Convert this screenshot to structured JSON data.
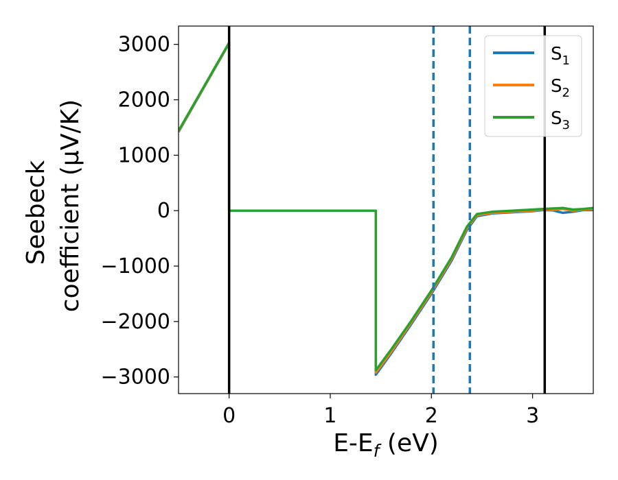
{
  "chart_data": {
    "type": "line",
    "xlabel_main": "E-E",
    "xlabel_sub": "f",
    "xlabel_unit": " (eV)",
    "ylabel_line1": "Seebeck",
    "ylabel_line2": "coefficient  (μV/K)",
    "xlim": [
      -0.5,
      3.6
    ],
    "ylim": [
      -3300,
      3330
    ],
    "xticks": [
      0,
      1,
      2,
      3
    ],
    "xtick_labels": [
      "0",
      "1",
      "2",
      "3"
    ],
    "yticks": [
      3000,
      2000,
      1000,
      0,
      -1000,
      -2000,
      -3000
    ],
    "ytick_labels": [
      "3000",
      "2000",
      "1000",
      "0",
      "−1000",
      "−2000",
      "−3000"
    ],
    "grid": false,
    "legend_position": "top-right",
    "vlines_solid": [
      0.0,
      3.12
    ],
    "vlines_dashed": [
      2.02,
      2.38
    ],
    "series": [
      {
        "name_main": "S",
        "name_sub": "1",
        "color": "#1f77b4",
        "x": [
          -0.5,
          0.0,
          0.0,
          1.45,
          1.45,
          1.6,
          1.8,
          2.0,
          2.2,
          2.35,
          2.45,
          2.6,
          2.8,
          3.0,
          3.1,
          3.2,
          3.3,
          3.4,
          3.5,
          3.6
        ],
        "y": [
          1420,
          3020,
          0,
          0,
          -2960,
          -2580,
          -2050,
          -1500,
          -900,
          -350,
          -100,
          -50,
          -30,
          -10,
          10,
          5,
          -40,
          -20,
          10,
          10
        ]
      },
      {
        "name_main": "S",
        "name_sub": "2",
        "color": "#ff7f0e",
        "x": [
          -0.5,
          0.0,
          0.0,
          1.45,
          1.45,
          1.6,
          1.8,
          2.0,
          2.2,
          2.35,
          2.45,
          2.6,
          2.8,
          3.0,
          3.1,
          3.2,
          3.3,
          3.4,
          3.5,
          3.6
        ],
        "y": [
          1430,
          3025,
          0,
          0,
          -2920,
          -2550,
          -2020,
          -1470,
          -870,
          -320,
          -80,
          -40,
          -20,
          0,
          20,
          15,
          30,
          0,
          20,
          30
        ]
      },
      {
        "name_main": "S",
        "name_sub": "3",
        "color": "#2ca02c",
        "x": [
          -0.5,
          0.0,
          0.0,
          1.45,
          1.45,
          1.6,
          1.8,
          2.0,
          2.2,
          2.35,
          2.45,
          2.6,
          2.8,
          3.0,
          3.1,
          3.2,
          3.3,
          3.4,
          3.5,
          3.6
        ],
        "y": [
          1440,
          3030,
          0,
          0,
          -2880,
          -2510,
          -1990,
          -1440,
          -840,
          -290,
          -60,
          -20,
          0,
          20,
          30,
          40,
          50,
          20,
          30,
          50
        ]
      }
    ]
  }
}
